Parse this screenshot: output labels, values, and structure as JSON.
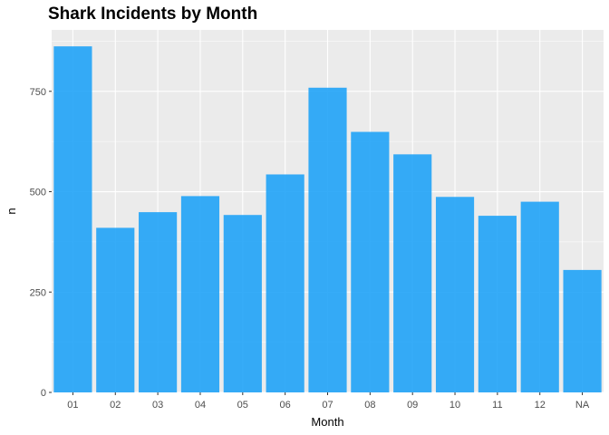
{
  "chart_data": {
    "type": "bar",
    "title": "Shark Incidents by Month",
    "xlabel": "Month",
    "ylabel": "n",
    "categories": [
      "01",
      "02",
      "03",
      "04",
      "05",
      "06",
      "07",
      "08",
      "09",
      "10",
      "11",
      "12",
      "NA"
    ],
    "values": [
      862,
      410,
      449,
      489,
      442,
      543,
      759,
      649,
      593,
      487,
      440,
      475,
      305
    ],
    "ylim": [
      0,
      903
    ],
    "yticks": [
      0,
      250,
      500,
      750
    ],
    "grid": true,
    "legend": "none",
    "bar_color": "#1aa0f7",
    "panel_background": "#ebebeb",
    "grid_color": "#ffffff"
  }
}
